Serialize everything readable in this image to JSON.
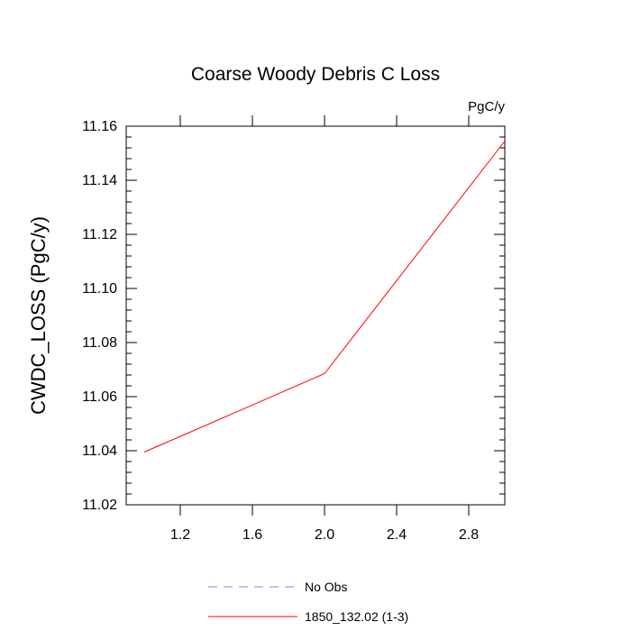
{
  "chart_data": {
    "type": "line",
    "title": "Coarse Woody Debris C Loss",
    "units_label": "PgC/y",
    "ylabel": "CWDC_LOSS  (PgC/y)",
    "xlabel": "",
    "xlim": [
      0.9,
      3.0
    ],
    "ylim": [
      11.02,
      11.16
    ],
    "x_ticks": [
      1.2,
      1.6,
      2.0,
      2.4,
      2.8
    ],
    "x_tick_labels": [
      "1.2",
      "1.6",
      "2.0",
      "2.4",
      "2.8"
    ],
    "y_ticks": [
      11.02,
      11.04,
      11.06,
      11.08,
      11.1,
      11.12,
      11.14,
      11.16
    ],
    "y_tick_labels": [
      "11.02",
      "11.04",
      "11.06",
      "11.08",
      "11.10",
      "11.12",
      "11.14",
      "11.16"
    ],
    "grid": false,
    "legend_position": "bottom",
    "series": [
      {
        "name": "No Obs",
        "x": [],
        "y": [],
        "color": "#8080ff",
        "dash": "dashed"
      },
      {
        "name": "1850_132.02 (1-3)",
        "x": [
          1.0,
          2.0,
          3.0
        ],
        "y": [
          11.0395,
          11.0685,
          11.1545
        ],
        "color": "#ff0000",
        "dash": "solid"
      }
    ]
  }
}
